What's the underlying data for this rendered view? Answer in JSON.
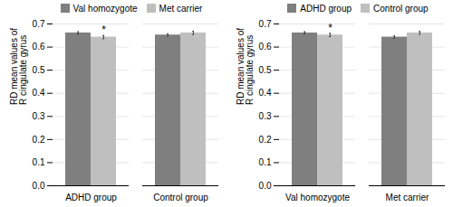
{
  "chart_data": [
    {
      "type": "bar",
      "ylabel": "RD mean values of\nR cingulate gyrus",
      "categories": [
        "ADHD group",
        "Control group"
      ],
      "series": [
        {
          "name": "Val homozygote",
          "color": "#7f7f7f",
          "values": [
            0.661,
            0.652
          ],
          "errors": [
            0.005,
            0.005
          ]
        },
        {
          "name": "Met carrier",
          "color": "#bfbfbf",
          "values": [
            0.643,
            0.661
          ],
          "errors": [
            0.007,
            0.007
          ]
        }
      ],
      "annotations": [
        {
          "text": "*",
          "category": "ADHD group",
          "series": "Met carrier"
        }
      ],
      "ylim": [
        0,
        0.7
      ],
      "yticks": [
        {
          "value": 0,
          "label": "0.0"
        },
        0.1,
        0.2,
        0.3,
        0.4,
        0.5,
        0.6,
        0.7
      ],
      "grid": true,
      "legend": "top"
    },
    {
      "type": "bar",
      "ylabel": "RD mean values of\nR cingulate gyrus",
      "categories": [
        "Val homozygote",
        "Met carrier"
      ],
      "series": [
        {
          "name": "ADHD group",
          "color": "#7f7f7f",
          "values": [
            0.661,
            0.643
          ],
          "errors": [
            0.005,
            0.005
          ]
        },
        {
          "name": "Control group",
          "color": "#bfbfbf",
          "values": [
            0.652,
            0.661
          ],
          "errors": [
            0.007,
            0.006
          ]
        }
      ],
      "annotations": [
        {
          "text": "*",
          "category": "Val homozygote",
          "series": "Control group"
        }
      ],
      "ylim": [
        0,
        0.7
      ],
      "yticks": [
        {
          "value": 0,
          "label": "0.0"
        },
        0.1,
        0.2,
        0.3,
        0.4,
        0.5,
        0.6,
        0.7
      ],
      "grid": true,
      "legend": "top"
    }
  ]
}
